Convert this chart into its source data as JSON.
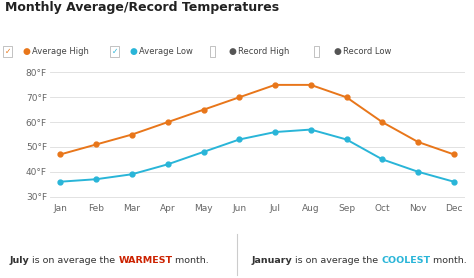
{
  "title": "Monthly Average/Record Temperatures",
  "months": [
    "Jan",
    "Feb",
    "Mar",
    "Apr",
    "May",
    "Jun",
    "Jul",
    "Aug",
    "Sep",
    "Oct",
    "Nov",
    "Dec"
  ],
  "avg_high": [
    47,
    51,
    55,
    60,
    65,
    70,
    75,
    75,
    70,
    60,
    52,
    47
  ],
  "avg_low": [
    36,
    37,
    39,
    43,
    48,
    53,
    56,
    57,
    53,
    45,
    40,
    36
  ],
  "avg_high_color": "#e8761a",
  "avg_low_color": "#29b5d8",
  "record_color": "#555555",
  "ylim": [
    28,
    84
  ],
  "yticks": [
    30,
    40,
    50,
    60,
    70,
    80
  ],
  "ytick_labels": [
    "30°F",
    "40°F",
    "50°F",
    "60°F",
    "70°F",
    "80°F"
  ],
  "bg_color": "#ffffff",
  "grid_color": "#dddddd",
  "warmest_color": "#cc2200",
  "coolest_color": "#29b5d8",
  "text_color": "#333333"
}
